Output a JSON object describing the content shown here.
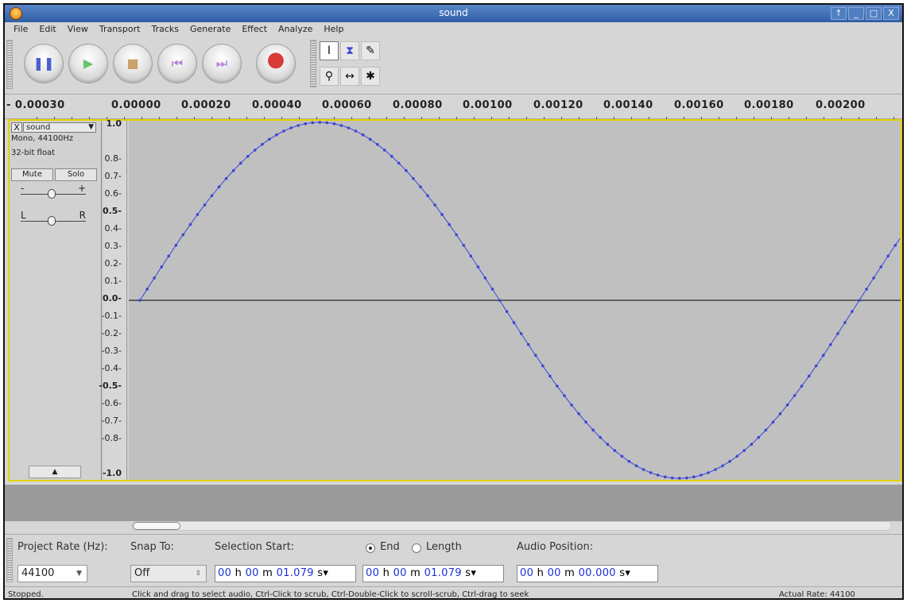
{
  "window": {
    "title": "sound",
    "buttons": [
      "↑",
      "_",
      "□",
      "X"
    ]
  },
  "menu": [
    "File",
    "Edit",
    "View",
    "Transport",
    "Tracks",
    "Generate",
    "Effect",
    "Analyze",
    "Help"
  ],
  "transport": {
    "buttons": [
      {
        "name": "pause",
        "symbol": "❚❚",
        "color": "#4a5fd0"
      },
      {
        "name": "play",
        "symbol": "▶",
        "color": "#6ac36a"
      },
      {
        "name": "stop",
        "symbol": "■",
        "color": "#c9a36a"
      },
      {
        "name": "skip-start",
        "symbol": "⏮",
        "color": "#b783d8"
      },
      {
        "name": "skip-end",
        "symbol": "⏭",
        "color": "#b783d8"
      },
      {
        "name": "record",
        "symbol": "●",
        "color": "#d93a3a"
      }
    ]
  },
  "tools": {
    "selection": "I",
    "envelope": "⧗",
    "draw": "✎",
    "zoom": "⚲",
    "timeshift": "↔",
    "multi": "✱"
  },
  "ruler": {
    "labels": [
      "- 0.00030",
      "0.00000",
      "0.00020",
      "0.00040",
      "0.00060",
      "0.00080",
      "0.00100",
      "0.00120",
      "0.00140",
      "0.00160",
      "0.00180",
      "0.00200"
    ]
  },
  "track": {
    "close": "X",
    "name": "sound",
    "format": "Mono, 44100Hz",
    "bitdepth": "32-bit float",
    "mute": "Mute",
    "solo": "Solo",
    "gain_minus": "-",
    "gain_plus": "+",
    "pan_left": "L",
    "pan_right": "R",
    "collapse": "▲"
  },
  "vruler": {
    "labels": [
      "1.0",
      "0.8-",
      "0.7-",
      "0.6-",
      "0.5-",
      "0.4-",
      "0.3-",
      "0.2-",
      "0.1-",
      "0.0-",
      "-0.1-",
      "-0.2-",
      "-0.3-",
      "-0.4-",
      "-0.5-",
      "-0.6-",
      "-0.7-",
      "-0.8-",
      "-1.0"
    ]
  },
  "selection_bar": {
    "project_rate_label": "Project Rate (Hz):",
    "project_rate": "44100",
    "snap_to_label": "Snap To:",
    "snap_to": "Off",
    "selection_start_label": "Selection Start:",
    "end_label": "End",
    "length_label": "Length",
    "audio_position_label": "Audio Position:",
    "sel_start": {
      "h": "00",
      "m": "00",
      "s": "01.079"
    },
    "sel_end": {
      "h": "00",
      "m": "00",
      "s": "01.079"
    },
    "audio_pos": {
      "h": "00",
      "m": "00",
      "s": "00.000"
    }
  },
  "status": {
    "state": "Stopped.",
    "hint": "Click and drag to select audio, Ctrl-Click to scrub, Ctrl-Double-Click to scroll-scrub, Ctrl-drag to seek",
    "rate": "Actual Rate: 44100"
  },
  "colors": {
    "waveform": "#3a45d6",
    "selected_border": "#e2d300",
    "title_bar": "#3a6db5"
  }
}
